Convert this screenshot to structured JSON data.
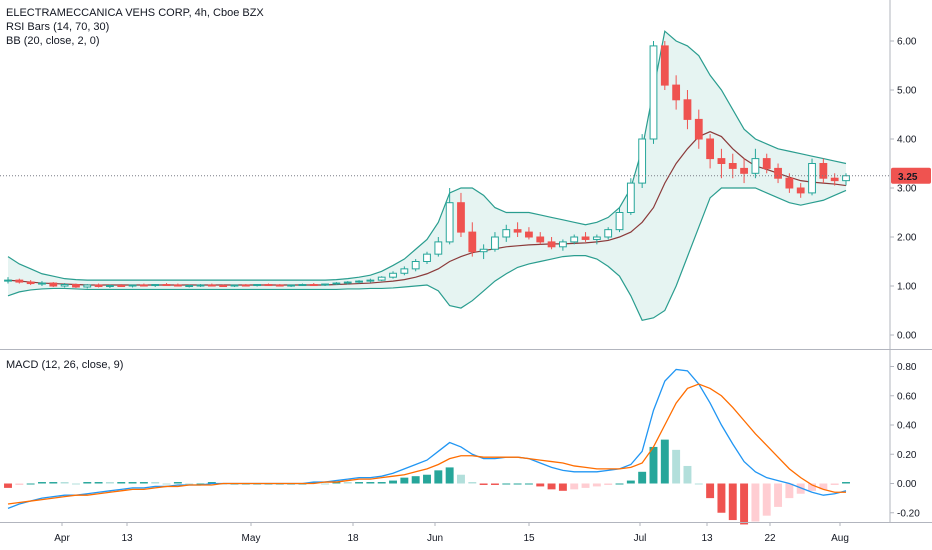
{
  "legend": {
    "title": "ELECTRAMECCANICA VEHS CORP, 4h, Cboe BZX",
    "rsi": "RSI Bars (14, 70, 30)",
    "bb": "BB (20, close, 2, 0)",
    "macd": "MACD (12, 26, close, 9)"
  },
  "price_tag": "3.25",
  "colors": {
    "up": "#26a69a",
    "down": "#ef5350",
    "bb_band": "#2a9d8f",
    "bb_fill": "#e6f4f2",
    "bb_basis": "#8b3a3a",
    "macd_line": "#2196f3",
    "signal_line": "#ff6d00",
    "hist_up_strong": "#26a69a",
    "hist_up_weak": "#b2dfdb",
    "hist_down_strong": "#ef5350",
    "hist_down_weak": "#ffcdd2"
  },
  "chart_data": [
    {
      "type": "candlestick",
      "name": "price",
      "y_ticks": [
        "6.00",
        "5.00",
        "4.00",
        "3.00",
        "2.00",
        "1.00",
        "0.00"
      ],
      "ylim": [
        -0.1,
        6.6
      ],
      "x_ticks": [
        "Apr",
        "13",
        "May",
        "18",
        "Jun",
        "15",
        "Jul",
        "13",
        "22",
        "Aug"
      ],
      "last_price": 3.25,
      "candles": [
        [
          1.1,
          1.18,
          1.05,
          1.12
        ],
        [
          1.12,
          1.15,
          1.05,
          1.08
        ],
        [
          1.08,
          1.12,
          1.02,
          1.05
        ],
        [
          1.05,
          1.1,
          1.0,
          1.06
        ],
        [
          1.06,
          1.08,
          0.98,
          1.0
        ],
        [
          1.0,
          1.06,
          0.97,
          1.03
        ],
        [
          1.03,
          1.05,
          0.96,
          0.98
        ],
        [
          0.98,
          1.04,
          0.95,
          1.02
        ],
        [
          1.02,
          1.05,
          0.97,
          0.99
        ],
        [
          0.99,
          1.03,
          0.96,
          1.01
        ],
        [
          1.01,
          1.04,
          0.98,
          1.0
        ],
        [
          1.0,
          1.03,
          0.97,
          1.02
        ],
        [
          1.02,
          1.05,
          0.99,
          1.01
        ],
        [
          1.01,
          1.04,
          0.98,
          1.03
        ],
        [
          1.03,
          1.06,
          1.0,
          1.02
        ],
        [
          1.02,
          1.05,
          0.99,
          1.0
        ],
        [
          1.0,
          1.03,
          0.97,
          1.01
        ],
        [
          1.01,
          1.04,
          0.98,
          1.02
        ],
        [
          1.02,
          1.05,
          0.99,
          1.01
        ],
        [
          1.01,
          1.03,
          0.98,
          1.0
        ],
        [
          1.0,
          1.03,
          0.98,
          1.02
        ],
        [
          1.02,
          1.04,
          0.99,
          1.01
        ],
        [
          1.01,
          1.04,
          0.99,
          1.03
        ],
        [
          1.03,
          1.05,
          1.0,
          1.02
        ],
        [
          1.02,
          1.04,
          0.99,
          1.01
        ],
        [
          1.01,
          1.03,
          0.98,
          1.02
        ],
        [
          1.02,
          1.05,
          1.0,
          1.03
        ],
        [
          1.03,
          1.06,
          1.01,
          1.02
        ],
        [
          1.02,
          1.05,
          1.0,
          1.04
        ],
        [
          1.04,
          1.08,
          1.02,
          1.06
        ],
        [
          1.06,
          1.1,
          1.03,
          1.08
        ],
        [
          1.08,
          1.12,
          1.05,
          1.1
        ],
        [
          1.1,
          1.15,
          1.07,
          1.12
        ],
        [
          1.12,
          1.2,
          1.1,
          1.18
        ],
        [
          1.18,
          1.3,
          1.15,
          1.26
        ],
        [
          1.26,
          1.4,
          1.22,
          1.35
        ],
        [
          1.35,
          1.55,
          1.3,
          1.5
        ],
        [
          1.5,
          1.7,
          1.45,
          1.65
        ],
        [
          1.65,
          2.0,
          1.6,
          1.9
        ],
        [
          1.9,
          3.0,
          1.85,
          2.7
        ],
        [
          2.7,
          2.9,
          2.0,
          2.1
        ],
        [
          2.1,
          2.3,
          1.6,
          1.7
        ],
        [
          1.7,
          1.85,
          1.55,
          1.75
        ],
        [
          1.75,
          2.1,
          1.7,
          2.0
        ],
        [
          2.0,
          2.25,
          1.9,
          2.15
        ],
        [
          2.15,
          2.3,
          2.0,
          2.1
        ],
        [
          2.1,
          2.2,
          1.95,
          2.0
        ],
        [
          2.0,
          2.1,
          1.85,
          1.9
        ],
        [
          1.9,
          2.0,
          1.75,
          1.8
        ],
        [
          1.8,
          1.95,
          1.72,
          1.9
        ],
        [
          1.9,
          2.05,
          1.85,
          2.0
        ],
        [
          2.0,
          2.1,
          1.9,
          1.95
        ],
        [
          1.95,
          2.05,
          1.85,
          2.0
        ],
        [
          2.0,
          2.2,
          1.95,
          2.15
        ],
        [
          2.15,
          2.6,
          2.1,
          2.5
        ],
        [
          2.5,
          3.2,
          2.45,
          3.1
        ],
        [
          3.1,
          4.1,
          3.0,
          4.0
        ],
        [
          4.0,
          6.0,
          3.9,
          5.9
        ],
        [
          5.9,
          6.0,
          5.0,
          5.1
        ],
        [
          5.1,
          5.3,
          4.6,
          4.8
        ],
        [
          4.8,
          5.0,
          4.2,
          4.4
        ],
        [
          4.4,
          4.6,
          3.8,
          4.0
        ],
        [
          4.0,
          4.1,
          3.4,
          3.6
        ],
        [
          3.6,
          3.8,
          3.2,
          3.5
        ],
        [
          3.5,
          3.7,
          3.2,
          3.4
        ],
        [
          3.4,
          3.6,
          3.1,
          3.3
        ],
        [
          3.3,
          3.8,
          3.2,
          3.6
        ],
        [
          3.6,
          3.7,
          3.3,
          3.4
        ],
        [
          3.4,
          3.5,
          3.1,
          3.2
        ],
        [
          3.2,
          3.3,
          2.9,
          3.0
        ],
        [
          3.0,
          3.1,
          2.8,
          2.9
        ],
        [
          2.9,
          3.6,
          2.85,
          3.5
        ],
        [
          3.5,
          3.6,
          3.1,
          3.2
        ],
        [
          3.2,
          3.3,
          3.05,
          3.15
        ],
        [
          3.15,
          3.3,
          3.05,
          3.25
        ]
      ],
      "bb_upper": [
        1.6,
        1.45,
        1.35,
        1.25,
        1.2,
        1.15,
        1.13,
        1.12,
        1.12,
        1.12,
        1.12,
        1.12,
        1.12,
        1.12,
        1.12,
        1.12,
        1.12,
        1.12,
        1.12,
        1.12,
        1.12,
        1.12,
        1.12,
        1.12,
        1.12,
        1.12,
        1.12,
        1.12,
        1.12,
        1.13,
        1.15,
        1.18,
        1.22,
        1.3,
        1.42,
        1.55,
        1.75,
        1.95,
        2.3,
        2.9,
        3.0,
        3.0,
        2.85,
        2.6,
        2.5,
        2.5,
        2.5,
        2.45,
        2.4,
        2.35,
        2.3,
        2.25,
        2.3,
        2.4,
        2.6,
        3.0,
        3.8,
        5.0,
        6.2,
        6.0,
        5.9,
        5.7,
        5.3,
        5.0,
        4.6,
        4.2,
        4.0,
        3.9,
        3.8,
        3.75,
        3.7,
        3.65,
        3.6,
        3.55,
        3.5
      ],
      "bb_basis": [
        1.12,
        1.1,
        1.08,
        1.06,
        1.05,
        1.04,
        1.03,
        1.02,
        1.02,
        1.02,
        1.02,
        1.02,
        1.02,
        1.02,
        1.02,
        1.02,
        1.02,
        1.02,
        1.02,
        1.02,
        1.02,
        1.02,
        1.02,
        1.02,
        1.02,
        1.02,
        1.02,
        1.02,
        1.02,
        1.03,
        1.04,
        1.05,
        1.06,
        1.08,
        1.1,
        1.13,
        1.18,
        1.25,
        1.35,
        1.5,
        1.6,
        1.68,
        1.72,
        1.76,
        1.8,
        1.82,
        1.84,
        1.85,
        1.86,
        1.86,
        1.87,
        1.88,
        1.9,
        1.93,
        2.0,
        2.1,
        2.3,
        2.6,
        3.1,
        3.5,
        3.8,
        4.05,
        4.15,
        4.05,
        3.8,
        3.6,
        3.45,
        3.38,
        3.3,
        3.22,
        3.15,
        3.12,
        3.1,
        3.08,
        3.05
      ],
      "bb_lower": [
        0.8,
        0.88,
        0.92,
        0.94,
        0.95,
        0.95,
        0.94,
        0.93,
        0.93,
        0.93,
        0.93,
        0.93,
        0.93,
        0.93,
        0.93,
        0.93,
        0.93,
        0.93,
        0.93,
        0.93,
        0.93,
        0.93,
        0.93,
        0.93,
        0.93,
        0.93,
        0.93,
        0.93,
        0.93,
        0.93,
        0.94,
        0.94,
        0.95,
        0.95,
        0.96,
        0.98,
        1.0,
        1.02,
        0.9,
        0.6,
        0.55,
        0.7,
        0.9,
        1.1,
        1.25,
        1.38,
        1.45,
        1.5,
        1.55,
        1.6,
        1.62,
        1.62,
        1.55,
        1.4,
        1.2,
        0.8,
        0.3,
        0.35,
        0.5,
        1.0,
        1.6,
        2.2,
        2.8,
        3.0,
        3.0,
        3.0,
        3.0,
        2.9,
        2.8,
        2.7,
        2.65,
        2.7,
        2.75,
        2.85,
        2.95
      ]
    },
    {
      "type": "macd",
      "name": "MACD",
      "y_ticks": [
        "0.80",
        "0.60",
        "0.40",
        "0.20",
        "0.00",
        "-0.20"
      ],
      "ylim": [
        -0.27,
        0.86
      ],
      "macd": [
        -0.17,
        -0.14,
        -0.12,
        -0.1,
        -0.09,
        -0.08,
        -0.08,
        -0.07,
        -0.06,
        -0.05,
        -0.04,
        -0.03,
        -0.03,
        -0.02,
        -0.02,
        -0.01,
        -0.01,
        -0.01,
        0.0,
        0.0,
        0.0,
        0.0,
        0.0,
        0.0,
        0.0,
        0.0,
        0.0,
        0.01,
        0.01,
        0.02,
        0.03,
        0.04,
        0.04,
        0.05,
        0.07,
        0.1,
        0.13,
        0.16,
        0.22,
        0.28,
        0.25,
        0.2,
        0.17,
        0.17,
        0.18,
        0.18,
        0.17,
        0.14,
        0.11,
        0.09,
        0.08,
        0.08,
        0.08,
        0.09,
        0.1,
        0.13,
        0.22,
        0.5,
        0.7,
        0.78,
        0.77,
        0.68,
        0.55,
        0.4,
        0.27,
        0.15,
        0.08,
        0.04,
        0.02,
        0.0,
        -0.03,
        -0.06,
        -0.08,
        -0.07,
        -0.05
      ],
      "signal": [
        -0.14,
        -0.13,
        -0.12,
        -0.11,
        -0.1,
        -0.09,
        -0.08,
        -0.08,
        -0.07,
        -0.06,
        -0.05,
        -0.04,
        -0.04,
        -0.03,
        -0.02,
        -0.02,
        -0.01,
        -0.01,
        -0.01,
        0.0,
        0.0,
        0.0,
        0.0,
        0.0,
        0.0,
        0.0,
        0.0,
        0.0,
        0.01,
        0.01,
        0.02,
        0.03,
        0.03,
        0.04,
        0.05,
        0.06,
        0.08,
        0.1,
        0.13,
        0.17,
        0.19,
        0.19,
        0.18,
        0.18,
        0.18,
        0.18,
        0.17,
        0.16,
        0.15,
        0.14,
        0.12,
        0.11,
        0.1,
        0.1,
        0.1,
        0.11,
        0.14,
        0.25,
        0.4,
        0.55,
        0.65,
        0.68,
        0.65,
        0.6,
        0.52,
        0.43,
        0.34,
        0.26,
        0.18,
        0.1,
        0.04,
        -0.01,
        -0.04,
        -0.06,
        -0.06
      ]
    }
  ]
}
